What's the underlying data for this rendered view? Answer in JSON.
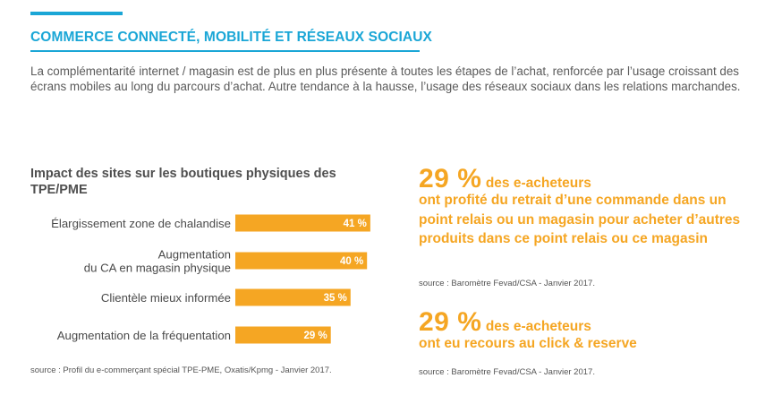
{
  "section": {
    "title": "COMMERCE CONNECTÉ, MOBILITÉ ET RÉSEAUX SOCIAUX",
    "intro": "La complémentarité internet / magasin est de plus en plus présente à toutes les étapes de l’achat, renforcée par l’usage croissant des écrans mobiles au long du parcours d’achat. Autre tendance à la hausse, l’usage des réseaux sociaux dans les relations marchandes."
  },
  "colors": {
    "accent_blue": "#1aa6d6",
    "accent_orange": "#f5a623",
    "text_gray": "#4a4a4a"
  },
  "chart_data": {
    "type": "bar",
    "orientation": "horizontal",
    "title": "Impact des sites sur les boutiques physiques des TPE/PME",
    "categories": [
      [
        "Élargissement zone de chalandise"
      ],
      [
        "Augmentation",
        "du CA en magasin physique"
      ],
      [
        "Clientèle mieux informée"
      ],
      [
        "Augmentation de la fréquentation"
      ]
    ],
    "values": [
      41,
      40,
      35,
      29
    ],
    "value_labels": [
      "41 %",
      "40 %",
      "35 %",
      "29 %"
    ],
    "unit": "%",
    "color": "#f5a623",
    "grid": false,
    "source": "source : Profil du e-commerçant spécial TPE-PME, Oxatis/Kpmg - Janvier 2017."
  },
  "stats": [
    {
      "number": "29 %",
      "lead": "des e-acheteurs",
      "body": "ont profité du retrait d’une commande dans un point relais ou un magasin pour acheter d’autres produits dans ce point relais ou ce magasin",
      "source": "source : Baromètre Fevad/CSA - Janvier 2017."
    },
    {
      "number": "29 %",
      "lead": "des e-acheteurs",
      "body": "ont eu recours au click & reserve",
      "source": "source : Baromètre Fevad/CSA - Janvier 2017."
    }
  ]
}
